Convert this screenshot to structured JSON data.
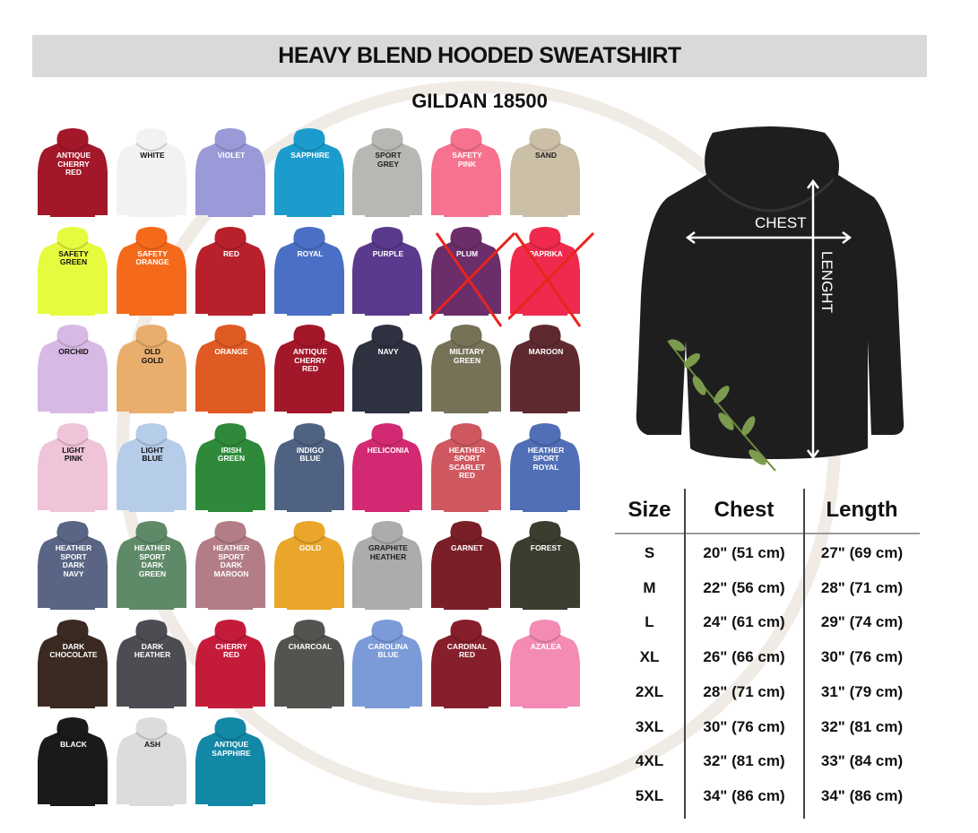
{
  "title": "HEAVY BLEND HOODED SWEATSHIRT",
  "subtitle": "GILDAN 18500",
  "colors": [
    {
      "name": "ANTIQUE\nCHERRY\nRED",
      "hex": "#a3172a",
      "text": "#fff"
    },
    {
      "name": "WHITE",
      "hex": "#f2f2f2",
      "text": "#111"
    },
    {
      "name": "VIOLET",
      "hex": "#9a9ad8",
      "text": "#fff"
    },
    {
      "name": "SAPPHIRE",
      "hex": "#1b9ccc",
      "text": "#fff"
    },
    {
      "name": "SPORT\nGREY",
      "hex": "#b9b7b4",
      "text": "#222"
    },
    {
      "name": "SAFETY\nPINK",
      "hex": "#f6728f",
      "text": "#fff"
    },
    {
      "name": "SAND",
      "hex": "#cbbfa7",
      "text": "#222"
    },
    {
      "name": "SAFETY\nGREEN",
      "hex": "#e6fb3e",
      "text": "#111"
    },
    {
      "name": "SAFETY\nORANGE",
      "hex": "#f56a1a",
      "text": "#fff"
    },
    {
      "name": "RED",
      "hex": "#b8202b",
      "text": "#fff"
    },
    {
      "name": "ROYAL",
      "hex": "#4a6fc4",
      "text": "#fff"
    },
    {
      "name": "PURPLE",
      "hex": "#5a3a8c",
      "text": "#fff"
    },
    {
      "name": "PLUM",
      "hex": "#6b2e6a",
      "text": "#fff",
      "crossed": true
    },
    {
      "name": "PAPRIKA",
      "hex": "#ee2a4e",
      "text": "#fff",
      "crossed": true
    },
    {
      "name": "ORCHID",
      "hex": "#d7b9e6",
      "text": "#111"
    },
    {
      "name": "OLD\nGOLD",
      "hex": "#e9ad6c",
      "text": "#111"
    },
    {
      "name": "ORANGE",
      "hex": "#e05a23",
      "text": "#fff"
    },
    {
      "name": "ANTIQUE\nCHERRY\nRED",
      "hex": "#a3172a",
      "text": "#fff"
    },
    {
      "name": "NAVY",
      "hex": "#2e3140",
      "text": "#fff"
    },
    {
      "name": "MILITARY\nGREEN",
      "hex": "#767257",
      "text": "#fff"
    },
    {
      "name": "MAROON",
      "hex": "#5e2a2f",
      "text": "#fff"
    },
    {
      "name": "LIGHT\nPINK",
      "hex": "#efc4d8",
      "text": "#111"
    },
    {
      "name": "LIGHT\nBLUE",
      "hex": "#b6cde9",
      "text": "#111"
    },
    {
      "name": "IRISH\nGREEN",
      "hex": "#2e8a3a",
      "text": "#fff"
    },
    {
      "name": "INDIGO\nBLUE",
      "hex": "#4f6282",
      "text": "#fff"
    },
    {
      "name": "HELICONIA",
      "hex": "#d22a72",
      "text": "#fff"
    },
    {
      "name": "HEATHER\nSPORT\nSCARLET\nRED",
      "hex": "#cf5860",
      "text": "#fff"
    },
    {
      "name": "HEATHER\nSPORT\nROYAL",
      "hex": "#506fb6",
      "text": "#fff"
    },
    {
      "name": "HEATHER\nSPORT\nDARK\nNAVY",
      "hex": "#5a6585",
      "text": "#fff"
    },
    {
      "name": "HEATHER\nSPORT\nDARK\nGREEN",
      "hex": "#5f8a68",
      "text": "#fff"
    },
    {
      "name": "HEATHER\nSPORT\nDARK\nMAROON",
      "hex": "#b27d86",
      "text": "#fff"
    },
    {
      "name": "GOLD",
      "hex": "#e9a62a",
      "text": "#fff"
    },
    {
      "name": "GRAPHITE\nHEATHER",
      "hex": "#acacac",
      "text": "#222"
    },
    {
      "name": "GARNET",
      "hex": "#7a1f28",
      "text": "#fff"
    },
    {
      "name": "FOREST",
      "hex": "#3b3d2e",
      "text": "#fff"
    },
    {
      "name": "DARK\nCHOCOLATE",
      "hex": "#3a2a22",
      "text": "#fff"
    },
    {
      "name": "DARK\nHEATHER",
      "hex": "#4b4d52",
      "text": "#fff"
    },
    {
      "name": "CHERRY\nRED",
      "hex": "#c51b3b",
      "text": "#fff"
    },
    {
      "name": "CHARCOAL",
      "hex": "#555350",
      "text": "#fff"
    },
    {
      "name": "CAROLINA\nBLUE",
      "hex": "#7b9ad8",
      "text": "#fff"
    },
    {
      "name": "CARDINAL\nRED",
      "hex": "#861f2b",
      "text": "#fff"
    },
    {
      "name": "AZALEA",
      "hex": "#f38bb4",
      "text": "#fff"
    },
    {
      "name": "BLACK",
      "hex": "#1a1a1a",
      "text": "#fff"
    },
    {
      "name": "ASH",
      "hex": "#dcdcdc",
      "text": "#111"
    },
    {
      "name": "ANTIQUE\nSAPPHIRE",
      "hex": "#1387a6",
      "text": "#fff"
    }
  ],
  "diagram": {
    "chest": "CHEST",
    "length": "LENGHT",
    "hoodie_color": "#1e1e1e"
  },
  "size_table": {
    "headers": [
      "Size",
      "Chest",
      "Length"
    ],
    "rows": [
      [
        "S",
        "20\" (51 cm)",
        "27\" (69 cm)"
      ],
      [
        "M",
        "22\" (56 cm)",
        "28\" (71 cm)"
      ],
      [
        "L",
        "24\" (61 cm)",
        "29\" (74 cm)"
      ],
      [
        "XL",
        "26\" (66 cm)",
        "30\" (76 cm)"
      ],
      [
        "2XL",
        "28\" (71 cm)",
        "31\" (79 cm)"
      ],
      [
        "3XL",
        "30\" (76 cm)",
        "32\" (81 cm)"
      ],
      [
        "4XL",
        "32\" (81 cm)",
        "33\" (84 cm)"
      ],
      [
        "5XL",
        "34\" (86 cm)",
        "34\" (86 cm)"
      ]
    ]
  }
}
